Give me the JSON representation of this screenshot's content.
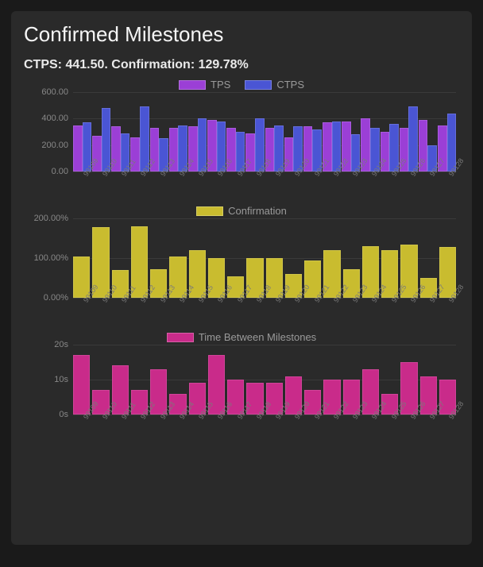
{
  "panel": {
    "title": "Confirmed Milestones",
    "subtitle": "CTPS: 441.50. Confirmation: 129.78%",
    "background_color": "#2a2a2a",
    "page_background": "#1a1a1a",
    "text_color": "#e8e8e8",
    "muted_text": "#888888",
    "grid_color": "#3a3a3a"
  },
  "categories": [
    "99109",
    "99110",
    "99111",
    "99112",
    "99113",
    "99114",
    "99115",
    "99116",
    "99117",
    "99118",
    "99119",
    "99120",
    "99121",
    "99122",
    "99123",
    "99124",
    "99125",
    "99126",
    "99127",
    "99128"
  ],
  "chart1": {
    "type": "grouped-bar",
    "legend": [
      {
        "label": "TPS",
        "color": "#9b3fd6"
      },
      {
        "label": "CTPS",
        "color": "#4a55d4"
      }
    ],
    "ylim": [
      0,
      600
    ],
    "ytick_step": 200,
    "ytick_format": "{v}.00",
    "tps": [
      350,
      270,
      340,
      260,
      330,
      330,
      340,
      390,
      330,
      290,
      330,
      260,
      340,
      370,
      380,
      400,
      300,
      330,
      390,
      350
    ],
    "ctps": [
      370,
      480,
      290,
      490,
      250,
      350,
      400,
      380,
      300,
      400,
      350,
      340,
      320,
      380,
      280,
      330,
      360,
      490,
      200,
      440
    ],
    "tps_color": "#9b3fd6",
    "ctps_color": "#4a55d4",
    "bar_border": "rgba(255,255,255,0.15)"
  },
  "chart2": {
    "type": "bar",
    "legend": [
      {
        "label": "Confirmation",
        "color": "#c9bc2f"
      }
    ],
    "ylim": [
      0,
      200
    ],
    "ytick_step": 100,
    "ytick_format": "{v}.00%",
    "values": [
      105,
      178,
      70,
      180,
      72,
      105,
      120,
      100,
      55,
      100,
      100,
      60,
      95,
      120,
      72,
      130,
      120,
      135,
      50,
      128
    ],
    "bar_color": "#c9bc2f"
  },
  "chart3": {
    "type": "bar",
    "legend": [
      {
        "label": "Time Between Milestones",
        "color": "#c92b8a"
      }
    ],
    "ylim": [
      0,
      20
    ],
    "ytick_step": 10,
    "ytick_format": "{v}s",
    "values": [
      17,
      7,
      14,
      7,
      13,
      6,
      9,
      17,
      10,
      9,
      9,
      11,
      7,
      10,
      10,
      13,
      6,
      15,
      11,
      10
    ],
    "bar_color": "#c92b8a"
  }
}
